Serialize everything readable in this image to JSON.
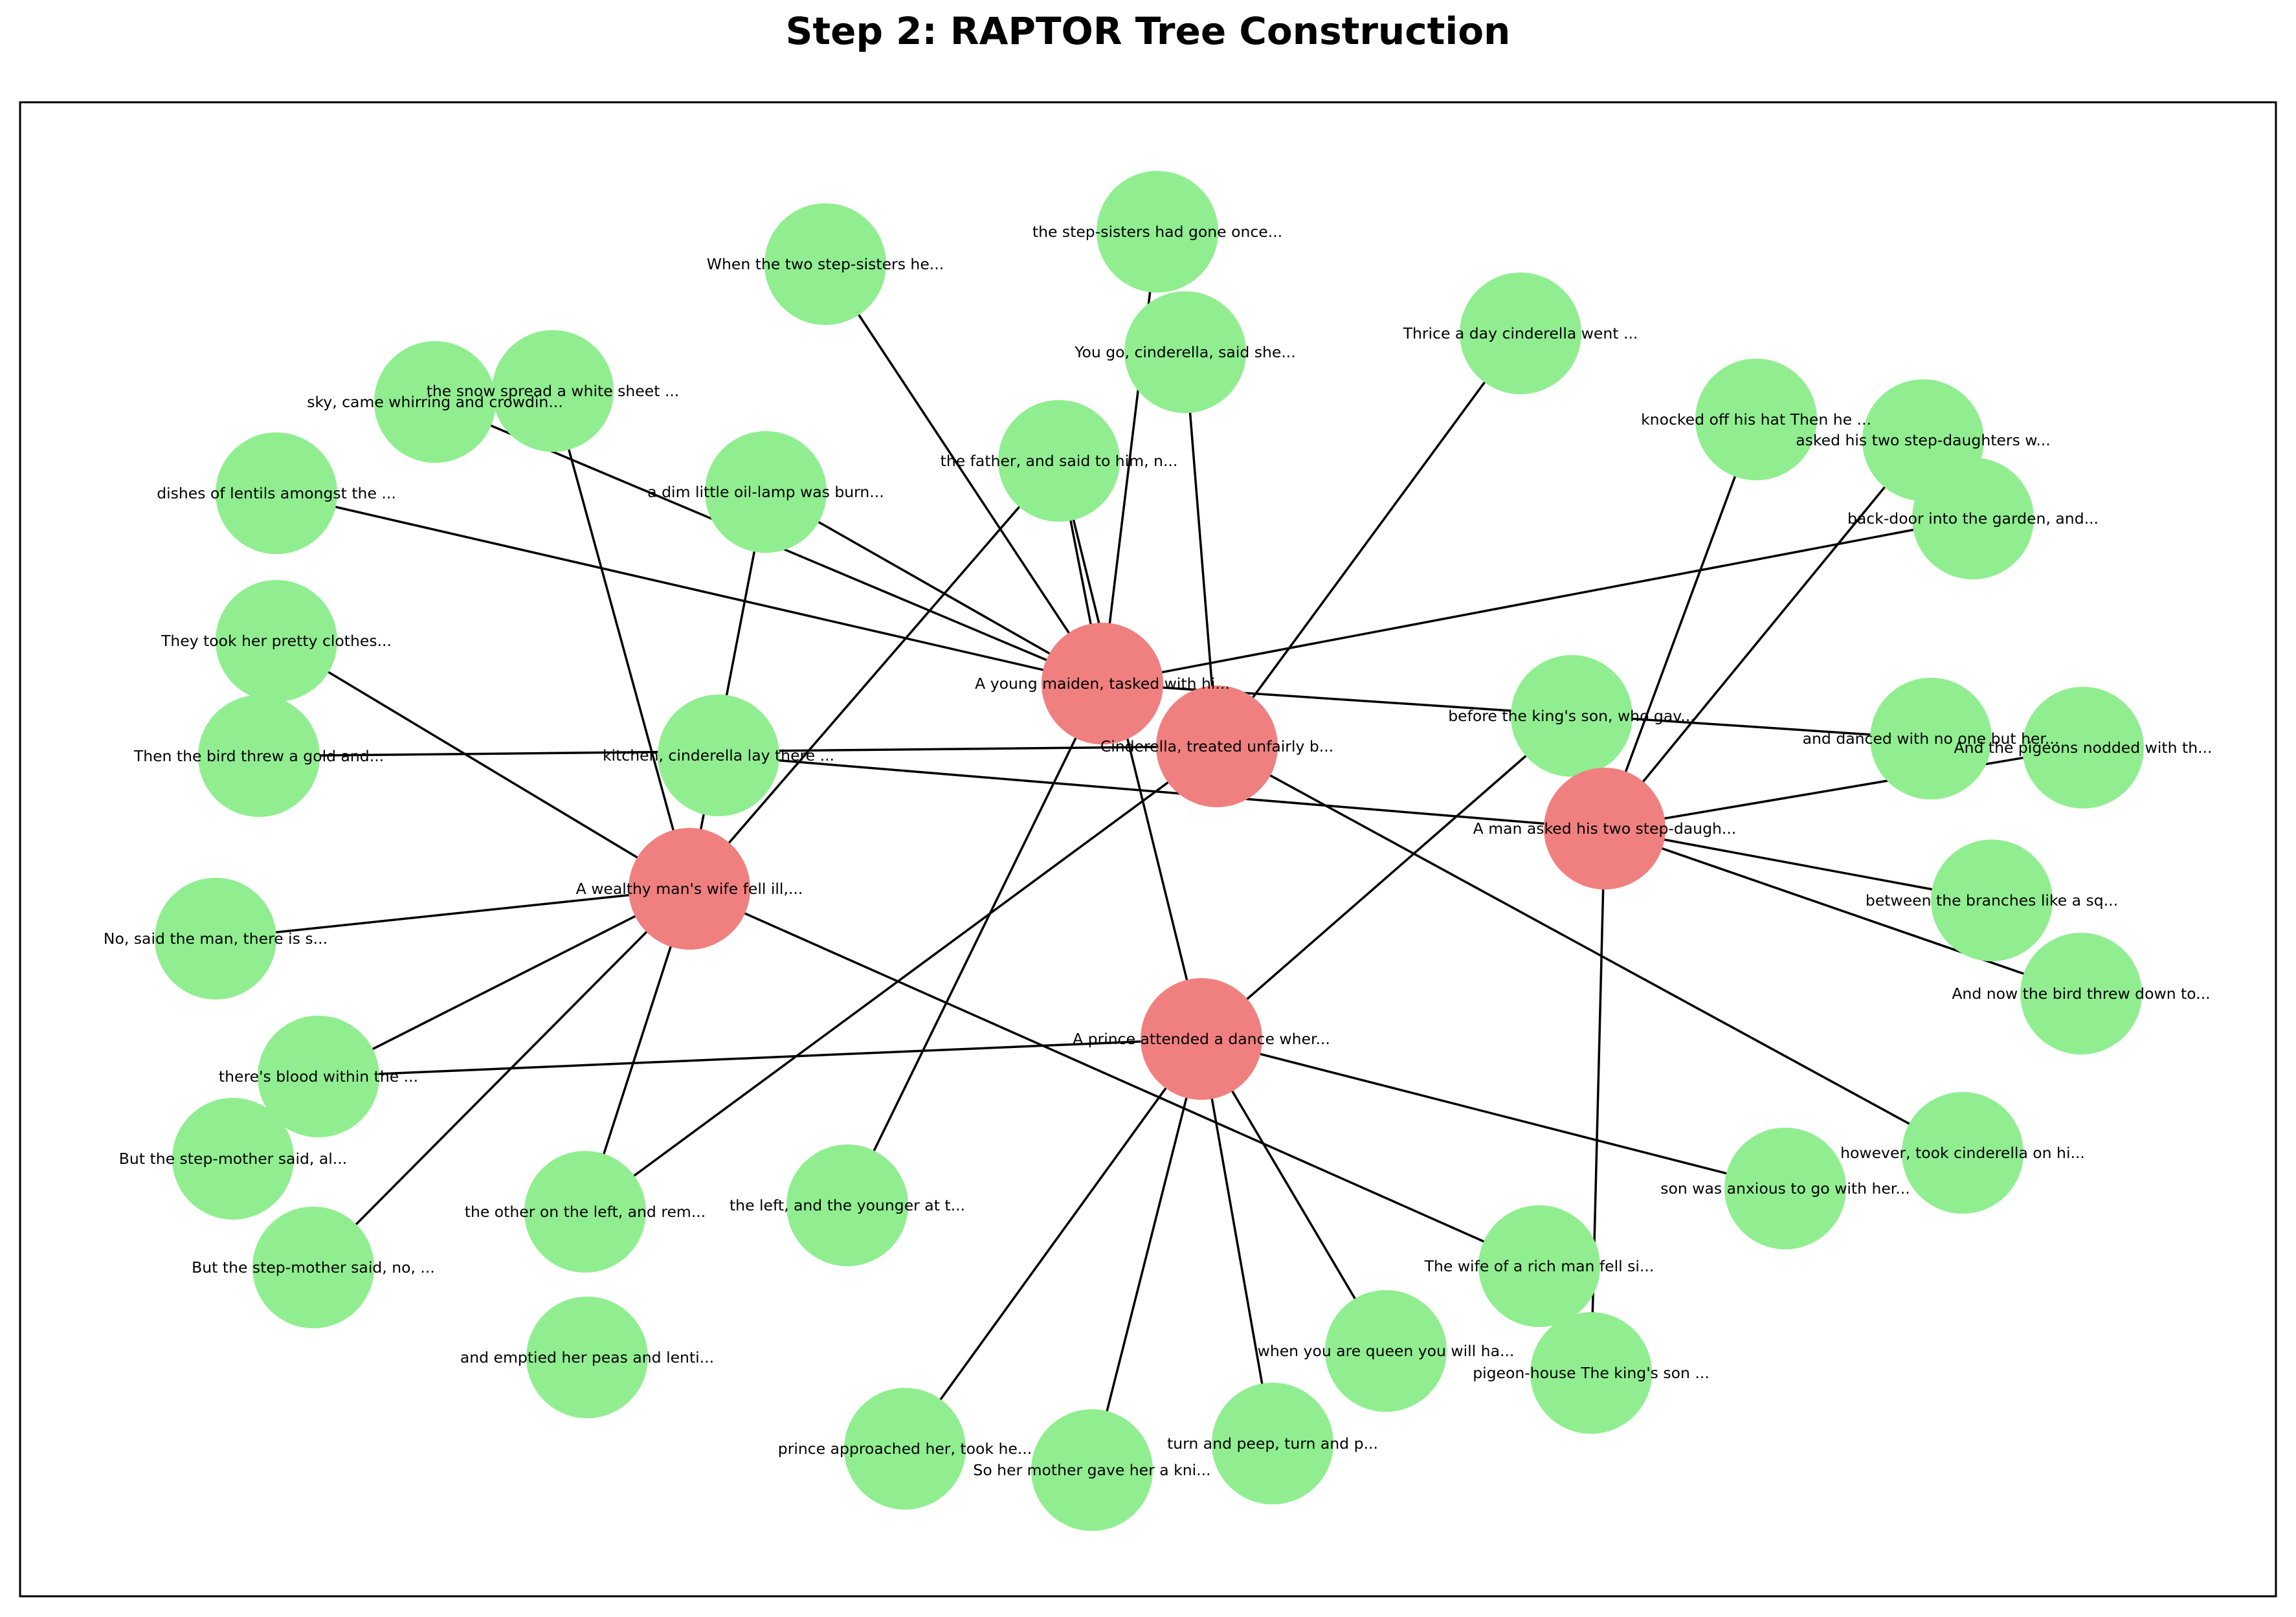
{
  "title": "Step 2: RAPTOR Tree Construction",
  "colors": {
    "summary_node": "#f08080",
    "leaf_node": "#90ee90",
    "edge": "#000000",
    "frame": "#000000"
  },
  "summary_nodes": [
    {
      "id": "s1",
      "label": "A wealthy man's wife fell ill,..."
    },
    {
      "id": "s2",
      "label": "A young maiden, tasked with hi..."
    },
    {
      "id": "s3",
      "label": "Cinderella, treated unfairly b..."
    },
    {
      "id": "s4",
      "label": "A man asked his two step-daugh..."
    },
    {
      "id": "s5",
      "label": "A prince attended a dance wher..."
    }
  ],
  "leaf_nodes": [
    {
      "id": "l1",
      "label": "the step-sisters had gone once..."
    },
    {
      "id": "l2",
      "label": "When the two step-sisters he..."
    },
    {
      "id": "l3",
      "label": "You go, cinderella, said she..."
    },
    {
      "id": "l4",
      "label": "Thrice a day cinderella went ..."
    },
    {
      "id": "l5",
      "label": "sky, came whirring and crowdin..."
    },
    {
      "id": "l6",
      "label": "the snow spread a white sheet ..."
    },
    {
      "id": "l7",
      "label": "knocked off his hat    Then he ..."
    },
    {
      "id": "l8",
      "label": "asked his two step-daughters w..."
    },
    {
      "id": "l9",
      "label": "dishes of lentils amongst the ..."
    },
    {
      "id": "l10",
      "label": "a dim little oil-lamp was burn..."
    },
    {
      "id": "l11",
      "label": "the father, and said to him, n..."
    },
    {
      "id": "l12",
      "label": "back-door into the garden, and..."
    },
    {
      "id": "l13",
      "label": "They took her pretty clothes..."
    },
    {
      "id": "l14",
      "label": "before the king's son, who gav..."
    },
    {
      "id": "l15",
      "label": "Then the bird threw a gold and..."
    },
    {
      "id": "l16",
      "label": "kitchen, cinderella lay there ..."
    },
    {
      "id": "l17",
      "label": "and danced with no one but her..."
    },
    {
      "id": "l18",
      "label": "And the pigeons nodded with th..."
    },
    {
      "id": "l19",
      "label": "No, said the man, there is s..."
    },
    {
      "id": "l20",
      "label": "between the branches like a sq..."
    },
    {
      "id": "l21",
      "label": "And now the bird threw down to..."
    },
    {
      "id": "l22",
      "label": "there's blood within the ..."
    },
    {
      "id": "l23",
      "label": "But the step-mother said, al..."
    },
    {
      "id": "l24",
      "label": "however, took cinderella on hi..."
    },
    {
      "id": "l25",
      "label": "son was anxious to go with her..."
    },
    {
      "id": "l26",
      "label": "the left, and the younger at t..."
    },
    {
      "id": "l27",
      "label": "the other on the left, and rem..."
    },
    {
      "id": "l28",
      "label": "But the step-mother said, no, ..."
    },
    {
      "id": "l29",
      "label": "The wife of a rich man fell si..."
    },
    {
      "id": "l30",
      "label": "and emptied her peas and lenti..."
    },
    {
      "id": "l31",
      "label": "when you are queen you will ha..."
    },
    {
      "id": "l32",
      "label": "pigeon-house    The king's son ..."
    },
    {
      "id": "l33",
      "label": "turn and peep, turn and p..."
    },
    {
      "id": "l34",
      "label": "prince approached her, took he..."
    },
    {
      "id": "l35",
      "label": "So her mother gave her a kni..."
    }
  ],
  "edges": [
    [
      "s2",
      "l1"
    ],
    [
      "s2",
      "l2"
    ],
    [
      "s2",
      "l5"
    ],
    [
      "s2",
      "l9"
    ],
    [
      "s2",
      "l10"
    ],
    [
      "s2",
      "l11"
    ],
    [
      "s2",
      "l12"
    ],
    [
      "s2",
      "l17"
    ],
    [
      "s2",
      "l26"
    ],
    [
      "s3",
      "l3"
    ],
    [
      "s3",
      "l4"
    ],
    [
      "s3",
      "l15"
    ],
    [
      "s3",
      "l24"
    ],
    [
      "s3",
      "l27"
    ],
    [
      "s1",
      "l6"
    ],
    [
      "s1",
      "l10"
    ],
    [
      "s1",
      "l11"
    ],
    [
      "s1",
      "l13"
    ],
    [
      "s1",
      "l19"
    ],
    [
      "s1",
      "l22"
    ],
    [
      "s1",
      "l28"
    ],
    [
      "s1",
      "l27"
    ],
    [
      "s1",
      "l29"
    ],
    [
      "s4",
      "l7"
    ],
    [
      "s4",
      "l8"
    ],
    [
      "s4",
      "l16"
    ],
    [
      "s4",
      "l18"
    ],
    [
      "s4",
      "l20"
    ],
    [
      "s4",
      "l21"
    ],
    [
      "s4",
      "l32"
    ],
    [
      "s5",
      "l14"
    ],
    [
      "s5",
      "l22"
    ],
    [
      "s5",
      "l25"
    ],
    [
      "s5",
      "l31"
    ],
    [
      "s5",
      "l33"
    ],
    [
      "s5",
      "l34"
    ],
    [
      "s5",
      "l35"
    ],
    [
      "s5",
      "l11"
    ]
  ]
}
